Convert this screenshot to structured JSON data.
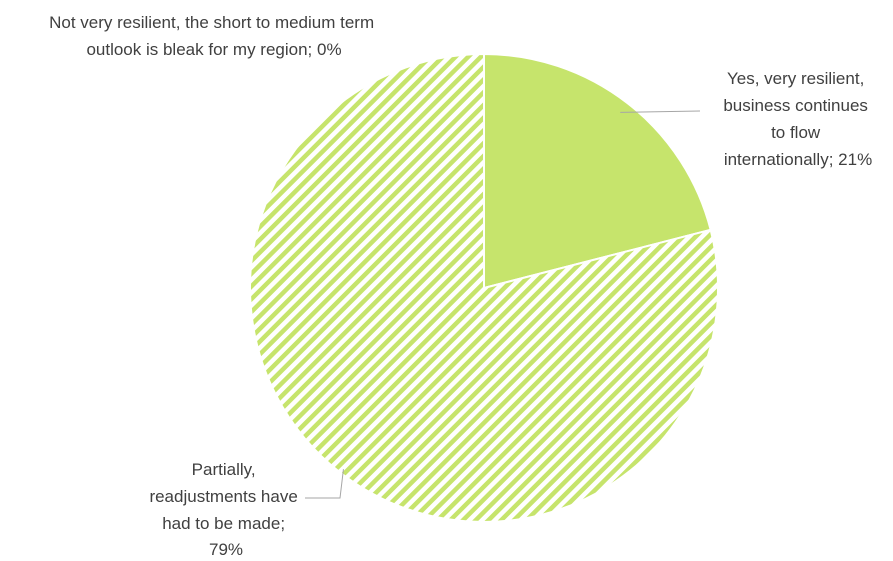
{
  "chart_data": {
    "type": "pie",
    "title": "",
    "start_angle_deg": 0,
    "direction": "clockwise",
    "slices": [
      {
        "label": "Yes, very resilient, business continues to flow internationally",
        "value": 21,
        "label_lines": [
          "Yes, very resilient,",
          "business continues",
          "to flow",
          "internationally; 21%"
        ],
        "fill": "solid",
        "color": "#c6e46c"
      },
      {
        "label": "Partially, readjustments have had to be made",
        "value": 79,
        "label_lines": [
          "Partially,",
          "readjustments have",
          "had to be made;",
          "79%"
        ],
        "fill": "diagonal-stripes",
        "color": "#c6e46c"
      },
      {
        "label": "Not very resilient, the short to medium term outlook is bleak for my region",
        "value": 0,
        "label_lines": [
          "Not very resilient, the short to medium term",
          "outlook is bleak for my region; 0%"
        ],
        "fill": "solid",
        "color": "#c6e46c"
      }
    ],
    "legend": "none",
    "leader_line_color": "#a6a6a6",
    "label_color": "#404040"
  }
}
